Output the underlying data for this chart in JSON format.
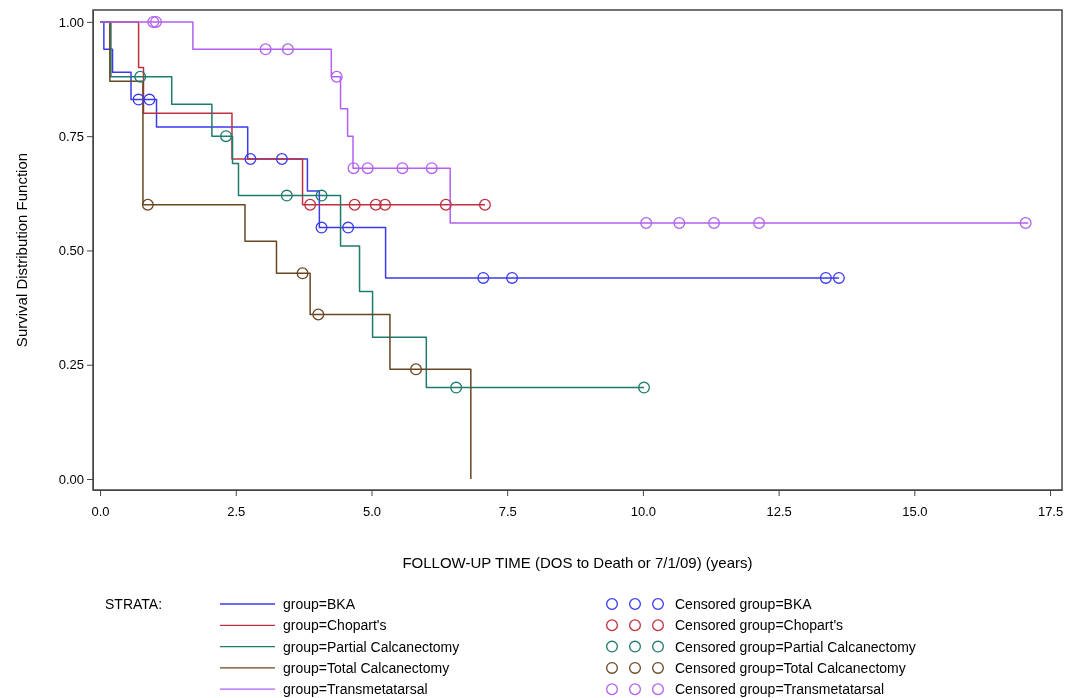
{
  "chart_data": {
    "type": "step",
    "xlabel": "FOLLOW-UP TIME (DOS to Death or 7/1/09) (years)",
    "ylabel": "Survival Distribution Function",
    "legend_title": "STRATA:",
    "legend": "bottom",
    "grid": false,
    "xlim": [
      -0.13,
      17.72
    ],
    "ylim": [
      -0.024,
      1.026
    ],
    "xticks": [
      {
        "value": 0,
        "label": "0.0"
      },
      {
        "value": 2.5,
        "label": "2.5"
      },
      {
        "value": 5,
        "label": "5.0"
      },
      {
        "value": 7.5,
        "label": "7.5"
      },
      {
        "value": 10,
        "label": "10.0"
      },
      {
        "value": 12.5,
        "label": "12.5"
      },
      {
        "value": 15,
        "label": "15.0"
      },
      {
        "value": 17.5,
        "label": "17.5"
      }
    ],
    "yticks": [
      {
        "value": 0,
        "label": "0.00"
      },
      {
        "value": 0.25,
        "label": "0.25"
      },
      {
        "value": 0.5,
        "label": "0.50"
      },
      {
        "value": 0.75,
        "label": "0.75"
      },
      {
        "value": 1,
        "label": "1.00"
      }
    ],
    "series": [
      {
        "name": "group=BKA",
        "color": "#3a3af0",
        "x": [
          0,
          0.07,
          0.23,
          0.57,
          1.04,
          2.72,
          3.82,
          4.04,
          5.26,
          13.61
        ],
        "values": [
          1,
          0.94,
          0.89,
          0.83,
          0.77,
          0.7,
          0.63,
          0.55,
          0.44,
          0.44
        ]
      },
      {
        "name": "group=Chopart's",
        "color": "#c0303f",
        "x": [
          0,
          0.71,
          0.8,
          2.43,
          3.73,
          7.09
        ],
        "values": [
          1,
          0.9,
          0.8,
          0.7,
          0.6,
          0.6
        ]
      },
      {
        "name": "group=Partial Calcanectomy",
        "color": "#1e7b6e",
        "x": [
          0,
          0.2,
          1.32,
          2.06,
          2.44,
          2.55,
          4.43,
          4.78,
          5.02,
          6.01,
          10.02
        ],
        "values": [
          1,
          0.88,
          0.82,
          0.75,
          0.69,
          0.62,
          0.51,
          0.41,
          0.31,
          0.2,
          0.2
        ]
      },
      {
        "name": "group=Total Calcanectomy",
        "color": "#684622",
        "x": [
          0,
          0.18,
          0.79,
          2.67,
          3.25,
          3.87,
          5.34,
          6.83
        ],
        "values": [
          1,
          0.87,
          0.6,
          0.52,
          0.45,
          0.36,
          0.24,
          0
        ]
      },
      {
        "name": "group=Transmetatarsal",
        "color": "#b25ff2",
        "x": [
          0,
          1.71,
          4.26,
          4.43,
          4.56,
          4.66,
          6.45,
          17.1
        ],
        "values": [
          1,
          0.94,
          0.88,
          0.81,
          0.75,
          0.68,
          0.56,
          0.56
        ]
      },
      {
        "name": "Censored group=BKA",
        "type": "scatter",
        "marker": "circle",
        "color": "#3a3af0",
        "x": [
          0.71,
          0.91,
          2.77,
          3.35,
          4.08,
          4.57,
          7.06,
          7.59,
          13.37,
          13.61
        ],
        "values": [
          0.83,
          0.83,
          0.7,
          0.7,
          0.55,
          0.55,
          0.44,
          0.44,
          0.44,
          0.44
        ]
      },
      {
        "name": "Censored group=Chopart's",
        "type": "scatter",
        "marker": "circle",
        "color": "#c0303f",
        "x": [
          3.87,
          4.69,
          5.08,
          5.25,
          6.37,
          7.09
        ],
        "values": [
          0.6,
          0.6,
          0.6,
          0.6,
          0.6,
          0.6
        ]
      },
      {
        "name": "Censored group=Partial Calcanectomy",
        "type": "scatter",
        "marker": "circle",
        "color": "#1e7b6e",
        "x": [
          0.74,
          2.32,
          3.44,
          4.08,
          6.56,
          10.02
        ],
        "values": [
          0.88,
          0.75,
          0.62,
          0.62,
          0.2,
          0.2
        ]
      },
      {
        "name": "Censored group=Total Calcanectomy",
        "type": "scatter",
        "marker": "circle",
        "color": "#684622",
        "x": [
          0.88,
          3.73,
          4.02,
          5.82
        ],
        "values": [
          0.6,
          0.45,
          0.36,
          0.24
        ]
      },
      {
        "name": "Censored group=Transmetatarsal",
        "type": "scatter",
        "marker": "circle",
        "color": "#b25ff2",
        "x": [
          0.98,
          1.03,
          3.05,
          3.46,
          4.36,
          4.67,
          4.93,
          5.57,
          6.11,
          10.06,
          10.67,
          11.31,
          12.14,
          17.05
        ],
        "values": [
          1,
          1,
          0.94,
          0.94,
          0.88,
          0.68,
          0.68,
          0.68,
          0.68,
          0.56,
          0.56,
          0.56,
          0.56,
          0.56
        ]
      }
    ]
  }
}
